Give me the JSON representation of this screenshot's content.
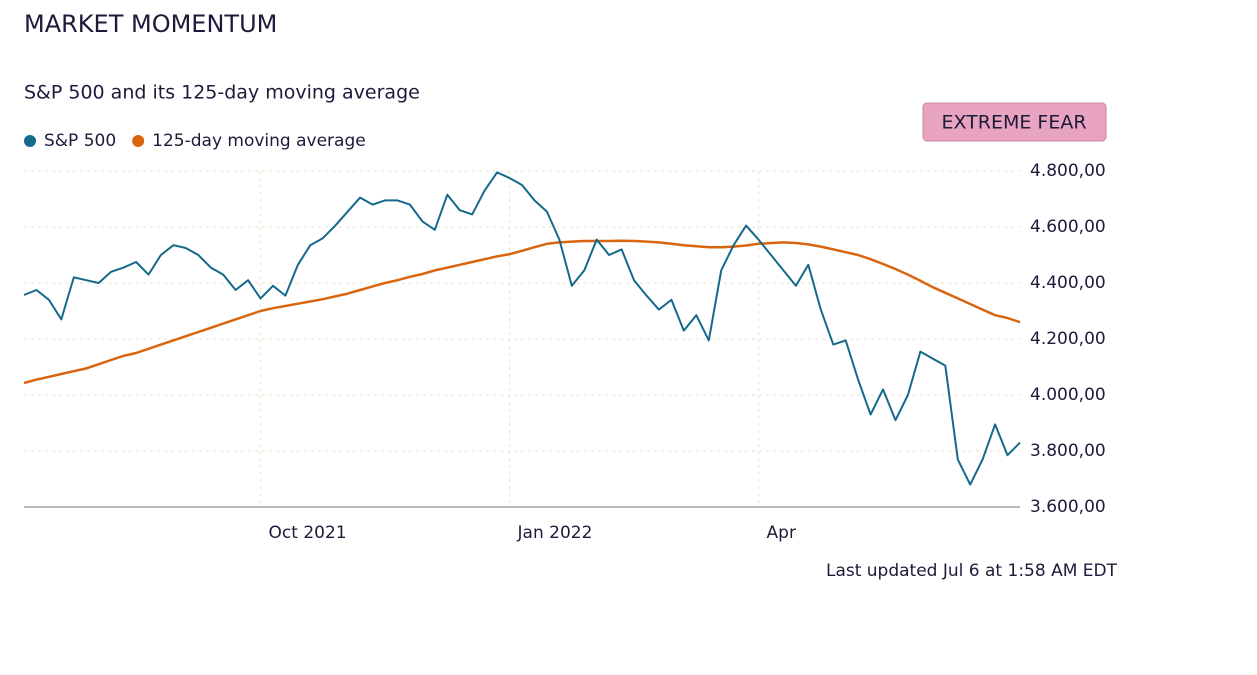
{
  "chart_data": {
    "type": "line",
    "title": "MARKET MOMENTUM",
    "subtitle": "S&P 500 and its 125-day moving average",
    "badge": "EXTREME FEAR",
    "footnote": "Last updated Jul 6 at 1:58 AM EDT",
    "categories": [
      null,
      null,
      null,
      null,
      null,
      null,
      null,
      null,
      null,
      null,
      null,
      null,
      null,
      null,
      null,
      null,
      null,
      null,
      null,
      "Oct 2021",
      null,
      null,
      null,
      null,
      null,
      null,
      null,
      null,
      null,
      null,
      null,
      null,
      null,
      null,
      null,
      null,
      null,
      null,
      null,
      "Jan 2022",
      null,
      null,
      null,
      null,
      null,
      null,
      null,
      null,
      null,
      null,
      null,
      null,
      null,
      null,
      null,
      null,
      null,
      null,
      null,
      "Apr",
      null,
      null,
      null,
      null,
      null,
      null,
      null,
      null,
      null,
      null,
      null,
      null,
      null,
      null,
      null,
      null,
      null,
      null,
      null,
      null,
      null
    ],
    "series": [
      {
        "name": "S&P 500",
        "color": "#14698c",
        "values": [
          4357,
          4375,
          4340,
          4270,
          4420,
          4410,
          4400,
          4440,
          4455,
          4475,
          4430,
          4500,
          4535,
          4525,
          4500,
          4455,
          4430,
          4375,
          4410,
          4345,
          4390,
          4355,
          4465,
          4535,
          4560,
          4605,
          4655,
          4705,
          4680,
          4695,
          4695,
          4680,
          4620,
          4590,
          4715,
          4660,
          4645,
          4730,
          4795,
          4775,
          4750,
          4695,
          4655,
          4555,
          4390,
          4445,
          4555,
          4500,
          4520,
          4410,
          4355,
          4305,
          4340,
          4230,
          4285,
          4195,
          4445,
          4535,
          4605,
          4555,
          4500,
          4445,
          4390,
          4465,
          4305,
          4180,
          4195,
          4055,
          3930,
          4020,
          3910,
          4000,
          4155,
          4130,
          4105,
          3770,
          3680,
          3770,
          3895,
          3785,
          3830
        ]
      },
      {
        "name": "125-day moving average",
        "color": "#d9660f",
        "values": [
          4043,
          4055,
          4065,
          4075,
          4085,
          4095,
          4110,
          4125,
          4140,
          4150,
          4165,
          4180,
          4195,
          4210,
          4225,
          4240,
          4255,
          4270,
          4285,
          4300,
          4310,
          4318,
          4326,
          4334,
          4342,
          4352,
          4362,
          4375,
          4388,
          4400,
          4410,
          4422,
          4432,
          4445,
          4455,
          4465,
          4475,
          4485,
          4495,
          4503,
          4515,
          4528,
          4540,
          4545,
          4548,
          4550,
          4550,
          4550,
          4551,
          4550,
          4548,
          4545,
          4540,
          4535,
          4531,
          4528,
          4528,
          4530,
          4534,
          4540,
          4543,
          4545,
          4543,
          4538,
          4530,
          4520,
          4510,
          4500,
          4485,
          4468,
          4450,
          4430,
          4408,
          4385,
          4365,
          4345,
          4325,
          4305,
          4285,
          4275,
          4260
        ]
      }
    ],
    "ylim": [
      3600,
      4800
    ],
    "yticks": [
      {
        "value": 3600,
        "label": "3.600,00"
      },
      {
        "value": 3800,
        "label": "3.800,00"
      },
      {
        "value": 4000,
        "label": "4.000,00"
      },
      {
        "value": 4200,
        "label": "4.200,00"
      },
      {
        "value": 4400,
        "label": "4.400,00"
      },
      {
        "value": 4600,
        "label": "4.600,00"
      },
      {
        "value": 4800,
        "label": "4.800,00"
      }
    ],
    "grid": true
  }
}
